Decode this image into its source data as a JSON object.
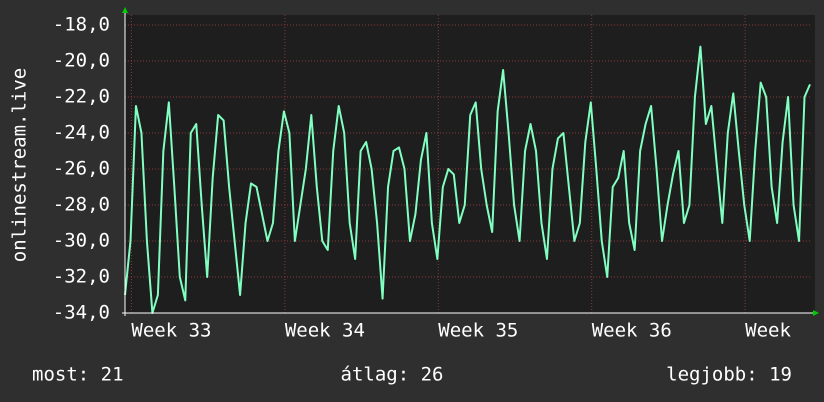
{
  "chart_data": {
    "type": "line",
    "ylabel": "onlinestream.live",
    "x": [
      0,
      6,
      12,
      18,
      24,
      30,
      36,
      42,
      48,
      54,
      60,
      66,
      72,
      78,
      84,
      90,
      96,
      102,
      108,
      114,
      120,
      126,
      132,
      138,
      144,
      150,
      156,
      162,
      168,
      174,
      180,
      186,
      192,
      198,
      204,
      210,
      216,
      222,
      228,
      234,
      240,
      246,
      252,
      258,
      264,
      270,
      276,
      282,
      288,
      294,
      300,
      306,
      312,
      318,
      324,
      330,
      336,
      342,
      348,
      354,
      360,
      366,
      372,
      378,
      384,
      390,
      396,
      402,
      408,
      414,
      420,
      426,
      432,
      438,
      444,
      450,
      456,
      462,
      468,
      474,
      480,
      486,
      492,
      498,
      504,
      510,
      516,
      522,
      528,
      534,
      540,
      546,
      552,
      558,
      564,
      570,
      576,
      582,
      588,
      594,
      600,
      606,
      612,
      618,
      624,
      630,
      636,
      642,
      648,
      654,
      660,
      666,
      672,
      678,
      684,
      690,
      696,
      702,
      708,
      714,
      720,
      726,
      732,
      738,
      744,
      750
    ],
    "series": [
      {
        "color": "#80ffc0",
        "values": [
          -33,
          -30,
          -22.5,
          -24,
          -30,
          -34,
          -33,
          -25,
          -22.3,
          -27,
          -32,
          -33.3,
          -24,
          -23.5,
          -28,
          -32,
          -26.5,
          -23,
          -23.3,
          -27,
          -30,
          -33,
          -29,
          -26.8,
          -27,
          -28.5,
          -30,
          -29,
          -25,
          -22.8,
          -24,
          -30,
          -28,
          -26,
          -23,
          -27,
          -30,
          -30.5,
          -25,
          -22.5,
          -24,
          -29,
          -31,
          -25,
          -24.5,
          -26,
          -29,
          -33.2,
          -27,
          -25,
          -24.8,
          -26,
          -30,
          -28.5,
          -25.5,
          -24,
          -29,
          -31,
          -27,
          -26,
          -26.3,
          -29,
          -28,
          -23,
          -22.3,
          -26,
          -28,
          -29.5,
          -22.8,
          -20.5,
          -24,
          -28,
          -30,
          -25,
          -23.5,
          -25,
          -29,
          -31,
          -26,
          -24.3,
          -24,
          -27,
          -30,
          -29,
          -24.5,
          -22.3,
          -26,
          -30,
          -32,
          -27,
          -26.5,
          -25,
          -29,
          -30.5,
          -25,
          -23.5,
          -22.5,
          -26,
          -30,
          -28,
          -26.3,
          -25,
          -29,
          -28,
          -22,
          -19.2,
          -23.5,
          -22.5,
          -25.8,
          -29,
          -24,
          -21.8,
          -25,
          -28,
          -30,
          -25,
          -21.2,
          -22,
          -27,
          -29,
          -24.5,
          -22,
          -28,
          -30,
          -22,
          -21.3
        ]
      }
    ],
    "xlim": [
      0,
      750
    ],
    "xticks": [
      {
        "value": 7,
        "label": "Week 33"
      },
      {
        "value": 175,
        "label": "Week 34"
      },
      {
        "value": 343,
        "label": "Week 35"
      },
      {
        "value": 511,
        "label": "Week 36"
      },
      {
        "value": 679,
        "label": "Week"
      }
    ],
    "ylim": [
      -34,
      -18
    ],
    "yticks": [
      {
        "value": -34,
        "label": "-34,0"
      },
      {
        "value": -32,
        "label": "-32,0"
      },
      {
        "value": -30,
        "label": "-30,0"
      },
      {
        "value": -28,
        "label": "-28,0"
      },
      {
        "value": -26,
        "label": "-26,0"
      },
      {
        "value": -24,
        "label": "-24,0"
      },
      {
        "value": -22,
        "label": "-22,0"
      },
      {
        "value": -20,
        "label": "-20,0"
      },
      {
        "value": -18,
        "label": "-18,0"
      }
    ],
    "grid": true,
    "footer": [
      "most: 21",
      "átlag: 26",
      "legjobb: 19"
    ]
  }
}
